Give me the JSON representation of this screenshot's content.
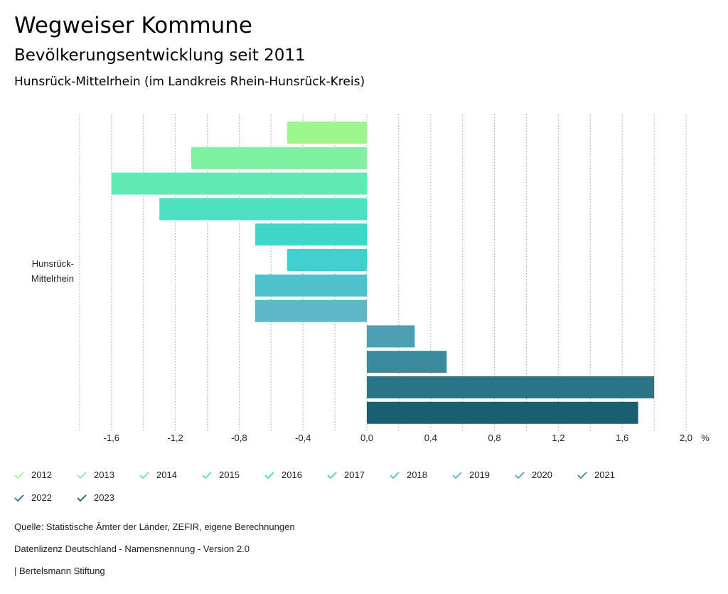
{
  "header": {
    "title": "Wegweiser Kommune",
    "subtitle": "Bevölkerungsentwicklung seit 2011",
    "region": "Hunsrück-Mittelrhein (im Landkreis Rhein-Hunsrück-Kreis)"
  },
  "chart_data": {
    "type": "bar",
    "orientation": "horizontal",
    "category": "Hunsrück-Mittelrhein",
    "category_lines": [
      "Hunsrück-",
      "Mittelrhein"
    ],
    "series": [
      {
        "name": "2012",
        "value": -0.5,
        "color": "#9ef58e"
      },
      {
        "name": "2013",
        "value": -1.1,
        "color": "#80f0a2"
      },
      {
        "name": "2014",
        "value": -1.6,
        "color": "#62e8b2"
      },
      {
        "name": "2015",
        "value": -1.3,
        "color": "#4ee0c2"
      },
      {
        "name": "2016",
        "value": -0.7,
        "color": "#40d7cb"
      },
      {
        "name": "2017",
        "value": -0.5,
        "color": "#3fcfcf"
      },
      {
        "name": "2018",
        "value": -0.7,
        "color": "#4dc2cc"
      },
      {
        "name": "2019",
        "value": -0.7,
        "color": "#5db6c8"
      },
      {
        "name": "2020",
        "value": 0.3,
        "color": "#4aa0b2"
      },
      {
        "name": "2021",
        "value": 0.5,
        "color": "#3a8a9c"
      },
      {
        "name": "2022",
        "value": 1.8,
        "color": "#2a7585"
      },
      {
        "name": "2023",
        "value": 1.7,
        "color": "#1a5f6f"
      }
    ],
    "xlim": [
      -1.8,
      2.0
    ],
    "ticks": [
      -1.6,
      -1.2,
      -0.8,
      -0.4,
      0.0,
      0.4,
      0.8,
      1.2,
      1.6,
      2.0
    ],
    "tick_labels": [
      "-1,6",
      "-1,2",
      "-0,8",
      "-0,4",
      "0,0",
      "0,4",
      "0,8",
      "1,2",
      "1,6",
      "2,0"
    ],
    "gridlines": [
      -1.8,
      -1.4,
      -1.0,
      -0.6,
      -0.2,
      0.2,
      0.6,
      1.0,
      1.4,
      1.8
    ],
    "unit": "%",
    "grid": true,
    "legend_position": "bottom"
  },
  "footer": {
    "source": "Quelle: Statistische Ämter der Länder, ZEFIR, eigene Berechnungen",
    "license": "Datenlizenz Deutschland - Namensnennung - Version 2.0",
    "credit": "| Bertelsmann Stiftung"
  }
}
